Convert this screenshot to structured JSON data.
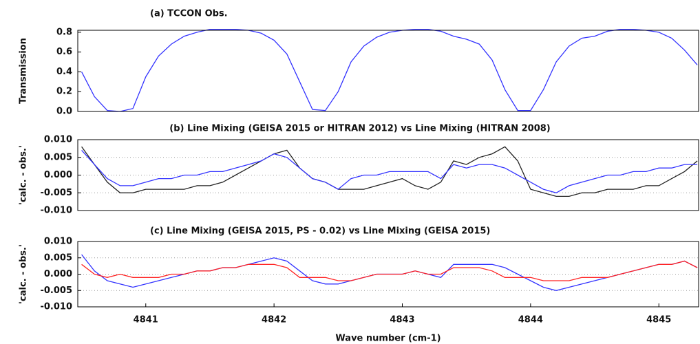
{
  "chart_data": [
    {
      "type": "line",
      "title": "(a) TCCON Obs.",
      "ylabel": "Transmission",
      "x": [
        4840.5,
        4840.6,
        4840.7,
        4840.8,
        4840.9,
        4841.0,
        4841.1,
        4841.2,
        4841.3,
        4841.4,
        4841.5,
        4841.6,
        4841.7,
        4841.8,
        4841.9,
        4842.0,
        4842.1,
        4842.2,
        4842.3,
        4842.4,
        4842.5,
        4842.6,
        4842.7,
        4842.8,
        4842.9,
        4843.0,
        4843.1,
        4843.2,
        4843.3,
        4843.4,
        4843.5,
        4843.6,
        4843.7,
        4843.8,
        4843.9,
        4844.0,
        4844.1,
        4844.2,
        4844.3,
        4844.4,
        4844.5,
        4844.6,
        4844.7,
        4844.8,
        4844.9,
        4845.0,
        4845.1,
        4845.2,
        4845.3
      ],
      "series": [
        {
          "name": "TCCON Obs.",
          "color": "#3333ff",
          "values": [
            0.4,
            0.15,
            0.01,
            0.0,
            0.03,
            0.35,
            0.56,
            0.68,
            0.76,
            0.8,
            0.83,
            0.83,
            0.83,
            0.82,
            0.79,
            0.72,
            0.58,
            0.3,
            0.02,
            0.01,
            0.2,
            0.5,
            0.66,
            0.75,
            0.8,
            0.82,
            0.83,
            0.83,
            0.81,
            0.76,
            0.73,
            0.68,
            0.52,
            0.22,
            0.01,
            0.01,
            0.22,
            0.5,
            0.66,
            0.74,
            0.76,
            0.81,
            0.83,
            0.83,
            0.82,
            0.8,
            0.74,
            0.62,
            0.47
          ]
        }
      ],
      "xlim": [
        4840.47,
        4845.31
      ],
      "ylim": [
        0,
        0.82
      ],
      "yticks": [
        {
          "value": 0,
          "label": "0.0"
        },
        {
          "value": 0.2,
          "label": "0.2"
        },
        {
          "value": 0.4,
          "label": "0.4"
        },
        {
          "value": 0.6,
          "label": "0.6"
        },
        {
          "value": 0.8,
          "label": "0.8"
        }
      ],
      "grid": false
    },
    {
      "type": "line",
      "title": "(b) Line Mixing (GEISA 2015 or HITRAN 2012) vs Line Mixing (HITRAN 2008)",
      "ylabel": "'calc. - obs.'",
      "x": [
        4840.5,
        4840.6,
        4840.7,
        4840.8,
        4840.9,
        4841.0,
        4841.1,
        4841.2,
        4841.3,
        4841.4,
        4841.5,
        4841.6,
        4841.7,
        4841.8,
        4841.9,
        4842.0,
        4842.1,
        4842.2,
        4842.3,
        4842.4,
        4842.5,
        4842.6,
        4842.7,
        4842.8,
        4842.9,
        4843.0,
        4843.1,
        4843.2,
        4843.3,
        4843.4,
        4843.5,
        4843.6,
        4843.7,
        4843.8,
        4843.9,
        4844.0,
        4844.1,
        4844.2,
        4844.3,
        4844.4,
        4844.5,
        4844.6,
        4844.7,
        4844.8,
        4844.9,
        4845.0,
        4845.1,
        4845.2,
        4845.3
      ],
      "series": [
        {
          "color": "#222222",
          "values": [
            0.008,
            0.003,
            -0.002,
            -0.005,
            -0.005,
            -0.004,
            -0.004,
            -0.004,
            -0.004,
            -0.003,
            -0.003,
            -0.002,
            0,
            0.002,
            0.004,
            0.006,
            0.007,
            0.002,
            -0.001,
            -0.002,
            -0.004,
            -0.004,
            -0.004,
            -0.003,
            -0.002,
            -0.001,
            -0.003,
            -0.004,
            -0.002,
            0.004,
            0.003,
            0.005,
            0.006,
            0.008,
            0.004,
            -0.004,
            -0.005,
            -0.006,
            -0.006,
            -0.005,
            -0.005,
            -0.004,
            -0.004,
            -0.004,
            -0.003,
            -0.003,
            -0.001,
            0.001,
            0.004
          ]
        },
        {
          "color": "#3333ff",
          "values": [
            0.007,
            0.003,
            -0.001,
            -0.003,
            -0.003,
            -0.002,
            -0.001,
            -0.001,
            0,
            0,
            0.001,
            0.001,
            0.002,
            0.003,
            0.004,
            0.006,
            0.005,
            0.002,
            -0.001,
            -0.002,
            -0.004,
            -0.001,
            0,
            0,
            0.001,
            0.001,
            0.001,
            0.001,
            -0.001,
            0.003,
            0.002,
            0.003,
            0.003,
            0.002,
            0,
            -0.002,
            -0.004,
            -0.005,
            -0.003,
            -0.002,
            -0.001,
            0,
            0,
            0.001,
            0.001,
            0.002,
            0.002,
            0.003,
            0.003
          ]
        }
      ],
      "xlim": [
        4840.47,
        4845.31
      ],
      "ylim": [
        -0.01,
        0.01
      ],
      "yticks": [
        {
          "value": -0.01,
          "label": "-0.010"
        },
        {
          "value": -0.005,
          "label": "-0.005"
        },
        {
          "value": 0,
          "label": "0.000"
        },
        {
          "value": 0.005,
          "label": "0.005"
        },
        {
          "value": 0.01,
          "label": "0.010"
        }
      ],
      "grid": true
    },
    {
      "type": "line",
      "title": "(c) Line Mixing (GEISA 2015, PS - 0.02) vs Line Mixing (GEISA 2015)",
      "ylabel": "'calc. - obs.'",
      "xlabel": "Wave number (cm-1)",
      "x": [
        4840.5,
        4840.6,
        4840.7,
        4840.8,
        4840.9,
        4841.0,
        4841.1,
        4841.2,
        4841.3,
        4841.4,
        4841.5,
        4841.6,
        4841.7,
        4841.8,
        4841.9,
        4842.0,
        4842.1,
        4842.2,
        4842.3,
        4842.4,
        4842.5,
        4842.6,
        4842.7,
        4842.8,
        4842.9,
        4843.0,
        4843.1,
        4843.2,
        4843.3,
        4843.4,
        4843.5,
        4843.6,
        4843.7,
        4843.8,
        4843.9,
        4844.0,
        4844.1,
        4844.2,
        4844.3,
        4844.4,
        4844.5,
        4844.6,
        4844.7,
        4844.8,
        4844.9,
        4845.0,
        4845.1,
        4845.2,
        4845.3
      ],
      "series": [
        {
          "color": "#3333ff",
          "values": [
            0.006,
            0.001,
            -0.002,
            -0.003,
            -0.004,
            -0.003,
            -0.002,
            -0.001,
            0,
            0.001,
            0.001,
            0.002,
            0.002,
            0.003,
            0.004,
            0.005,
            0.004,
            0.001,
            -0.002,
            -0.003,
            -0.003,
            -0.002,
            -0.001,
            0,
            0,
            0,
            0.001,
            0,
            -0.001,
            0.003,
            0.003,
            0.003,
            0.003,
            0.002,
            0,
            -0.002,
            -0.004,
            -0.005,
            -0.004,
            -0.003,
            -0.002,
            -0.001,
            0,
            0.001,
            0.002,
            0.003,
            0.003,
            0.004,
            0.002
          ]
        },
        {
          "color": "#ff2222",
          "values": [
            0.003,
            0,
            -0.001,
            0,
            -0.001,
            -0.001,
            -0.001,
            0,
            0,
            0.001,
            0.001,
            0.002,
            0.002,
            0.003,
            0.003,
            0.003,
            0.002,
            -0.001,
            -0.001,
            -0.001,
            -0.002,
            -0.002,
            -0.001,
            0,
            0,
            0,
            0.001,
            0,
            0,
            0.002,
            0.002,
            0.002,
            0.001,
            -0.001,
            -0.001,
            -0.001,
            -0.002,
            -0.002,
            -0.002,
            -0.001,
            -0.001,
            -0.001,
            0,
            0.001,
            0.002,
            0.003,
            0.003,
            0.004,
            0.002
          ]
        }
      ],
      "xlim": [
        4840.47,
        4845.31
      ],
      "ylim": [
        -0.01,
        0.01
      ],
      "xticks": [
        4841,
        4842,
        4843,
        4844,
        4845
      ],
      "yticks": [
        {
          "value": -0.01,
          "label": "-0.010"
        },
        {
          "value": -0.005,
          "label": "-0.005"
        },
        {
          "value": 0,
          "label": "0.000"
        },
        {
          "value": 0.005,
          "label": "0.005"
        },
        {
          "value": 0.01,
          "label": "0.010"
        }
      ],
      "grid": true
    }
  ]
}
